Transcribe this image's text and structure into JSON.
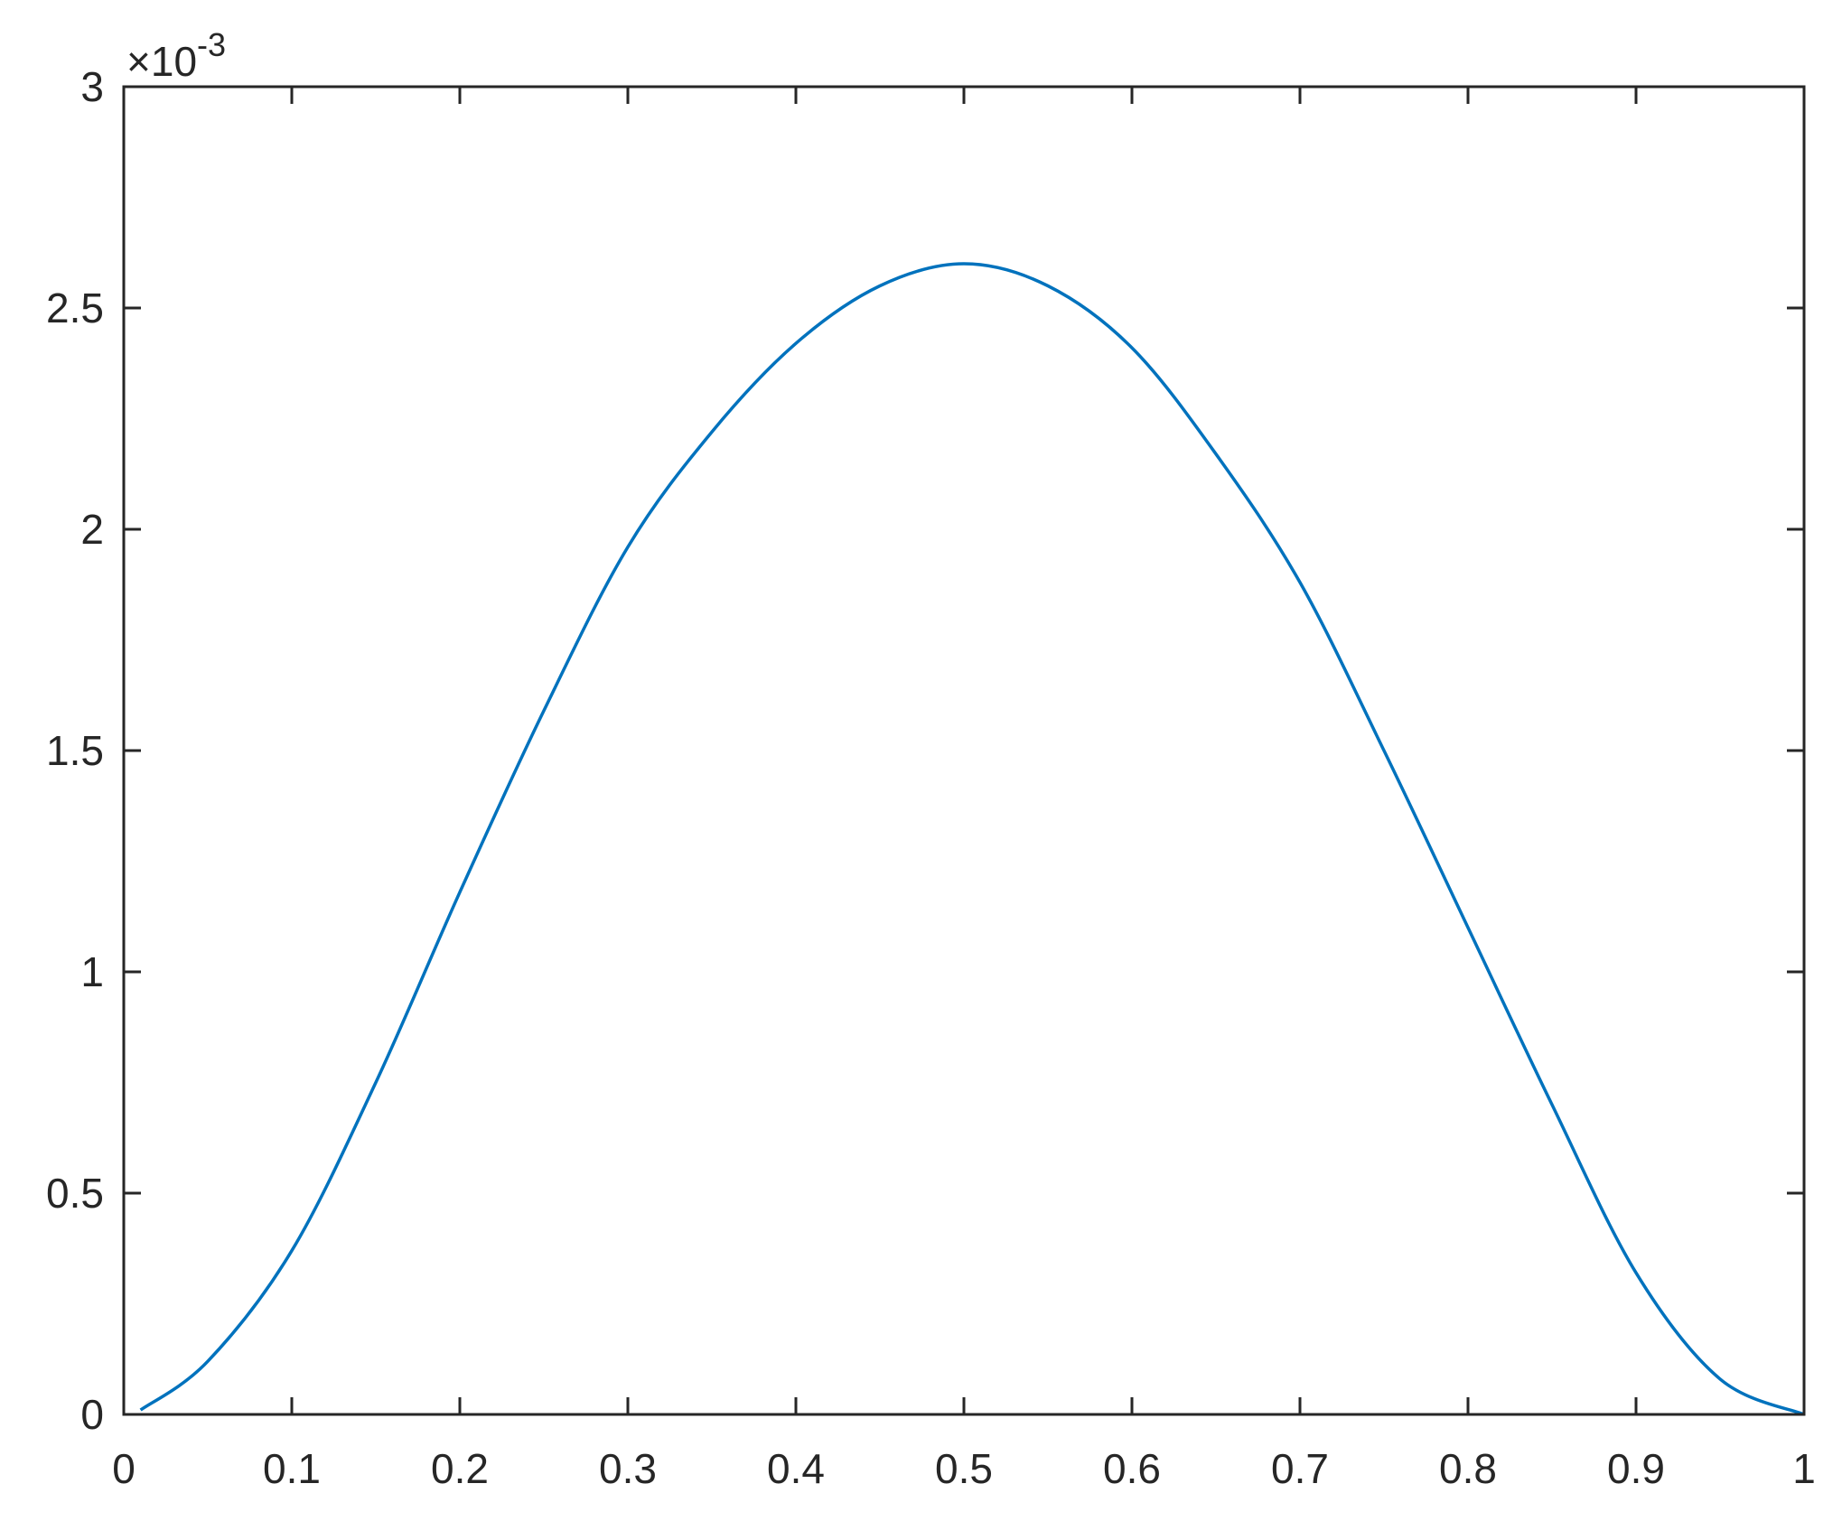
{
  "chart_data": {
    "type": "line",
    "title": "",
    "xlabel": "",
    "ylabel": "",
    "xlim": [
      0,
      1
    ],
    "ylim": [
      0,
      3
    ],
    "y_exponent_label": {
      "base": "×10",
      "exponent": "-3"
    },
    "xticks": [
      "0",
      "0.1",
      "0.2",
      "0.3",
      "0.4",
      "0.5",
      "0.6",
      "0.7",
      "0.8",
      "0.9",
      "1"
    ],
    "yticks": [
      "0",
      "0.5",
      "1",
      "1.5",
      "2",
      "2.5",
      "3"
    ],
    "grid": false,
    "line_color": "#0072BD",
    "axis_color": "#262626",
    "series": [
      {
        "x": [
          0.01,
          0.05,
          0.1,
          0.15,
          0.2,
          0.25,
          0.3,
          0.35,
          0.4,
          0.45,
          0.5,
          0.55,
          0.6,
          0.65,
          0.7,
          0.75,
          0.8,
          0.85,
          0.9,
          0.95,
          1.0
        ],
        "y": [
          0.01,
          0.12,
          0.37,
          0.75,
          1.18,
          1.59,
          1.96,
          2.22,
          2.42,
          2.55,
          2.6,
          2.55,
          2.41,
          2.17,
          1.88,
          1.5,
          1.1,
          0.7,
          0.32,
          0.08,
          0.0
        ]
      }
    ]
  }
}
